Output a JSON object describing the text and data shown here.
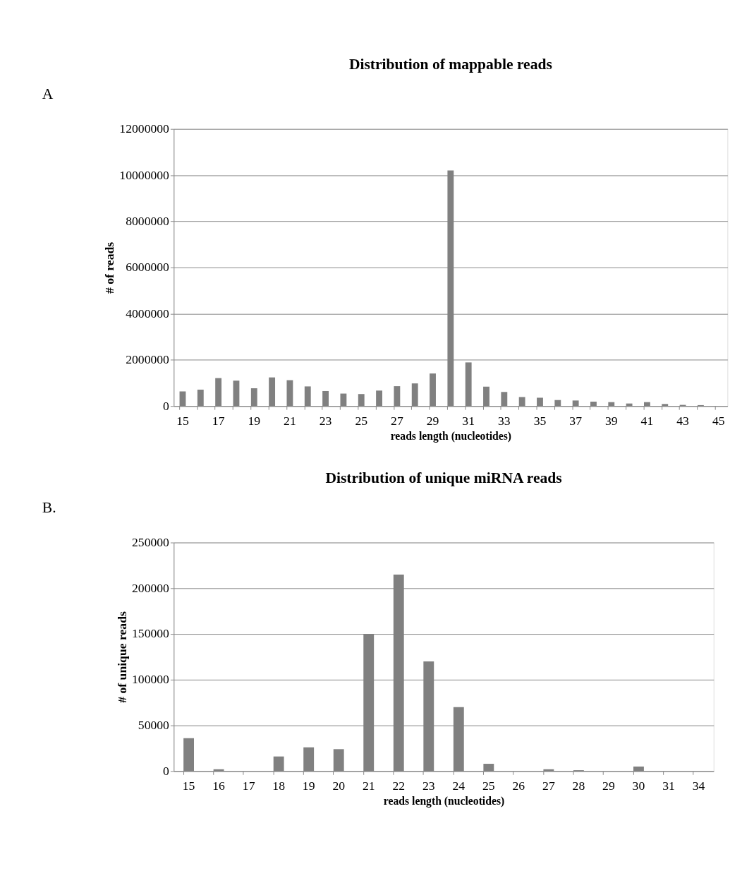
{
  "chart_data": [
    {
      "type": "bar",
      "title": "Distribution of mappable reads",
      "xlabel": "reads length (nucleotides)",
      "ylabel": "# of reads",
      "annotations": [
        "A"
      ],
      "categories": [
        "15",
        null,
        "17",
        null,
        "19",
        null,
        "21",
        null,
        "23",
        null,
        "25",
        null,
        "27",
        null,
        "29",
        null,
        "31",
        null,
        "33",
        null,
        "35",
        null,
        "37",
        null,
        "39",
        null,
        "41",
        null,
        "43",
        null,
        "45"
      ],
      "values": [
        630000,
        710000,
        1210000,
        1100000,
        770000,
        1240000,
        1120000,
        850000,
        650000,
        540000,
        520000,
        670000,
        860000,
        980000,
        1410000,
        10200000,
        1890000,
        840000,
        610000,
        390000,
        360000,
        260000,
        240000,
        190000,
        170000,
        110000,
        170000,
        90000,
        50000,
        40000,
        null
      ],
      "color": "#808080",
      "ylim": [
        0,
        12000000
      ],
      "yticks": [
        0,
        2000000,
        4000000,
        6000000,
        8000000,
        10000000,
        12000000
      ],
      "grid": "y"
    },
    {
      "type": "bar",
      "title": "Distribution of unique miRNA reads",
      "xlabel": "reads length (nucleotides)",
      "ylabel": "# of unique reads",
      "annotations": [
        "B."
      ],
      "categories": [
        "15",
        "16",
        "17",
        "18",
        "19",
        "20",
        "21",
        "22",
        "23",
        "24",
        "25",
        "26",
        "27",
        "28",
        "29",
        "30",
        "31",
        "34"
      ],
      "values": [
        36000,
        2000,
        0,
        16000,
        26000,
        24000,
        150000,
        215000,
        120000,
        70000,
        8000,
        0,
        2000,
        1000,
        0,
        5000,
        0,
        0
      ],
      "color": "#808080",
      "ylim": [
        0,
        250000
      ],
      "yticks": [
        0,
        50000,
        100000,
        150000,
        200000,
        250000
      ],
      "grid": "y"
    }
  ]
}
